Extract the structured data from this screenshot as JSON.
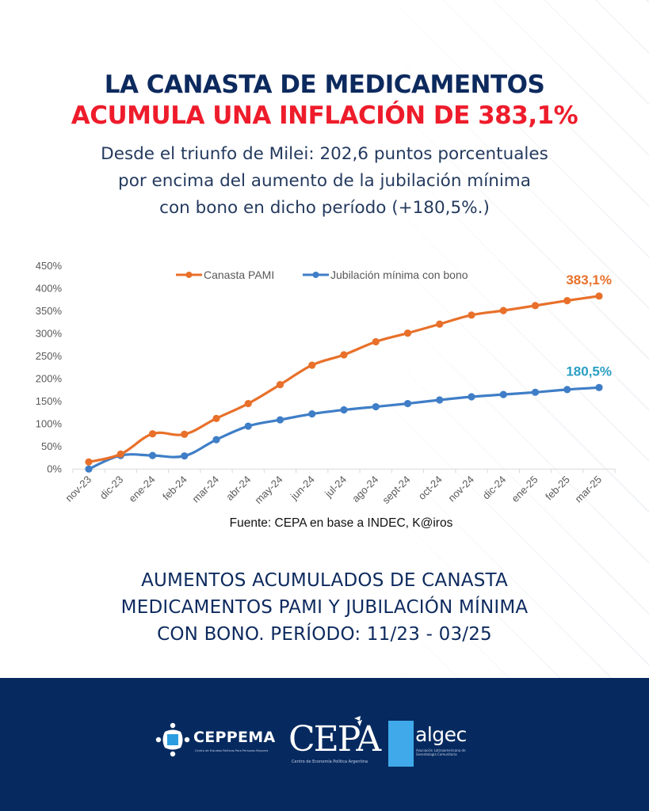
{
  "header": {
    "title_line1": "LA CANASTA DE MEDICAMENTOS",
    "title_line2": "ACUMULA UNA INFLACIÓN DE 383,1%",
    "subtitle_lines": [
      "Desde el triunfo de Milei: 202,6 puntos porcentuales",
      "por encima del aumento de la jubilación mínima",
      "con bono en dicho período (+180,5%.)"
    ]
  },
  "colors": {
    "title_dark": "#0d2a5e",
    "title_red": "#ee1c2b",
    "series_orange": "#e8702a",
    "series_blue": "#3f7ec7",
    "label_blue": "#2a9fc4",
    "footer_bg": "#062a60"
  },
  "chart_data": {
    "type": "line",
    "title": "",
    "xlabel": "",
    "ylabel": "",
    "ylim": [
      0,
      450
    ],
    "yticks": [
      0,
      50,
      100,
      150,
      200,
      250,
      300,
      350,
      400,
      450
    ],
    "ytick_labels": [
      "0%",
      "50%",
      "100%",
      "150%",
      "200%",
      "250%",
      "300%",
      "350%",
      "400%",
      "450%"
    ],
    "grid": false,
    "legend_position": "top-center",
    "categories": [
      "nov-23",
      "dic-23",
      "ene-24",
      "feb-24",
      "mar-24",
      "abr-24",
      "may-24",
      "jun-24",
      "jul-24",
      "ago-24",
      "sept-24",
      "oct-24",
      "nov-24",
      "dic-24",
      "ene-25",
      "feb-25",
      "mar-25"
    ],
    "series": [
      {
        "name": "Canasta PAMI",
        "color": "#e8702a",
        "values": [
          15.6,
          33,
          78,
          77,
          112,
          145,
          187,
          230,
          253,
          282,
          301,
          321,
          341,
          351,
          362,
          373,
          383.1
        ],
        "end_label": "383,1%",
        "end_label_color": "#e8702a"
      },
      {
        "name": "Jubilación mínima con bono",
        "color": "#3f7ec7",
        "values": [
          0,
          30,
          30,
          29,
          65,
          95,
          109,
          122,
          131,
          138,
          145,
          153,
          160,
          165,
          170,
          176,
          180.5
        ],
        "end_label": "180,5%",
        "end_label_color": "#2a9fc4"
      }
    ]
  },
  "source": "Fuente: CEPA en base a INDEC, K@iros",
  "bottom_title_lines": [
    "AUMENTOS ACUMULADOS DE CANASTA",
    "MEDICAMENTOS PAMI Y JUBILACIÓN MÍNIMA",
    "CON BONO. PERÍODO: 11/23 - 03/25"
  ],
  "footer": {
    "logos": [
      {
        "name": "CEPPEMA",
        "subtitle": "Centro de Estudios Políticos Para Personas Mayores"
      },
      {
        "name": "CEPA",
        "subtitle": "Centro de Economía Política Argentina"
      },
      {
        "name": "algec",
        "subtitle": "Asociación Latinoamericana de Gerontología Comunitaria"
      }
    ]
  }
}
